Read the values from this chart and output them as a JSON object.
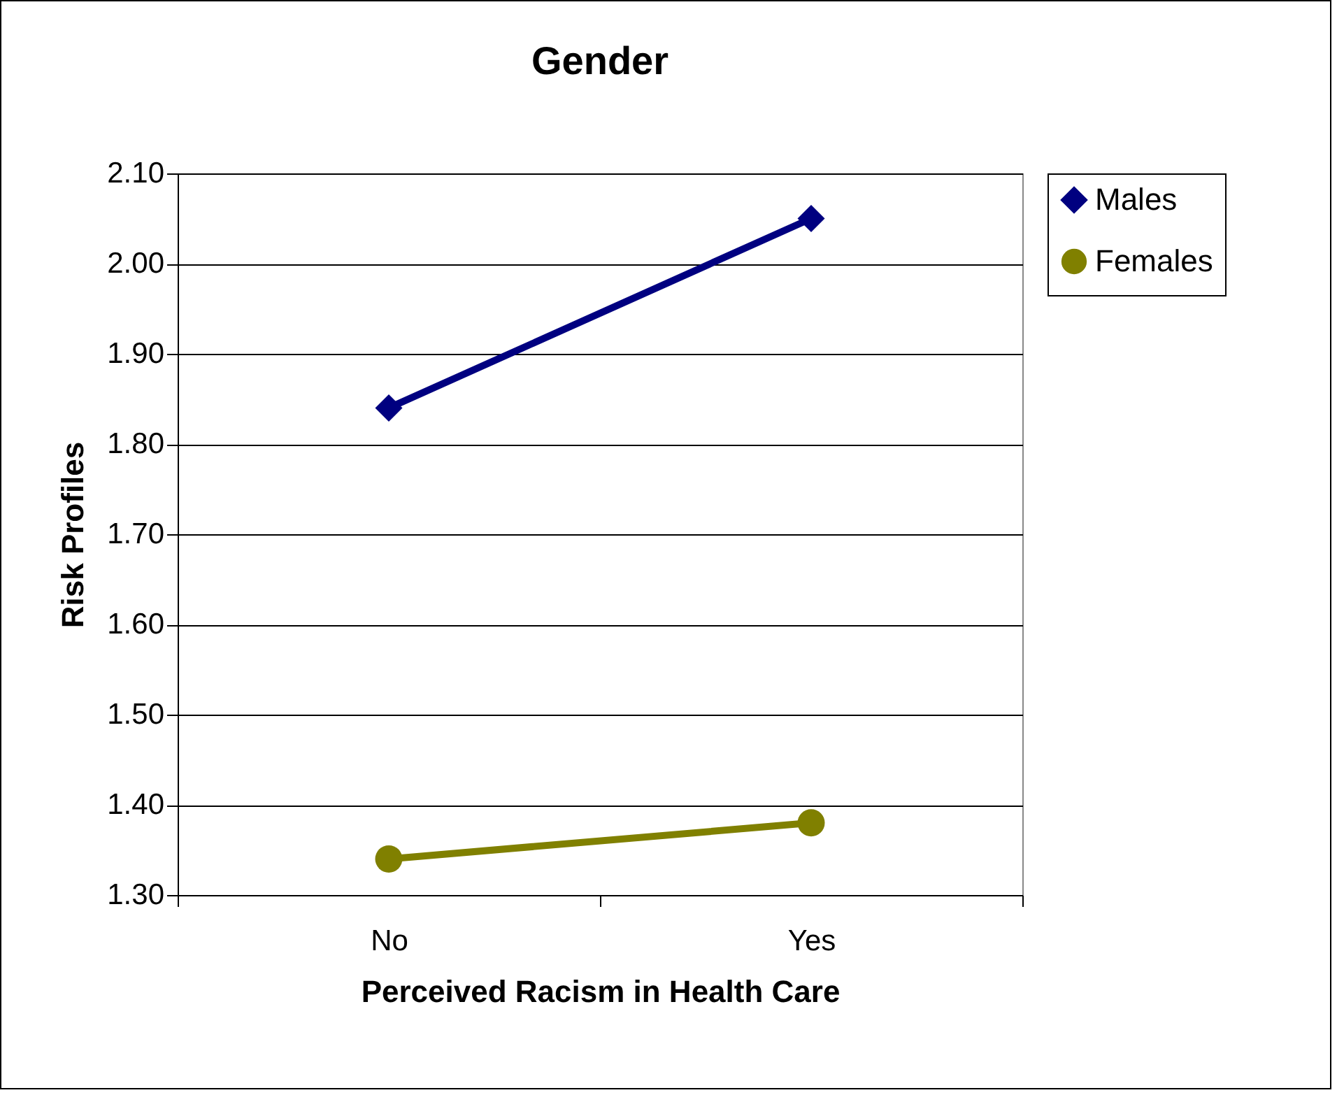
{
  "chart_data": {
    "type": "line",
    "title": "Gender",
    "xlabel": "Perceived Racism in Health Care",
    "ylabel": "Risk Profiles",
    "categories": [
      "No",
      "Yes"
    ],
    "series": [
      {
        "name": "Males",
        "color": "#000080",
        "values": [
          1.84,
          2.05
        ],
        "marker": "diamond"
      },
      {
        "name": "Females",
        "color": "#808000",
        "values": [
          1.34,
          1.38
        ],
        "marker": "circle"
      }
    ],
    "ylim": [
      1.3,
      2.1
    ],
    "yticks": [
      {
        "value": 1.3,
        "label": "1.30"
      },
      {
        "value": 1.4,
        "label": "1.40"
      },
      {
        "value": 1.5,
        "label": "1.50"
      },
      {
        "value": 1.6,
        "label": "1.60"
      },
      {
        "value": 1.7,
        "label": "1.70"
      },
      {
        "value": 1.8,
        "label": "1.80"
      },
      {
        "value": 1.9,
        "label": "1.90"
      },
      {
        "value": 2.0,
        "label": "2.00"
      },
      {
        "value": 2.1,
        "label": "2.10"
      }
    ],
    "grid": "y",
    "legend": "right",
    "line_style": "solid"
  }
}
